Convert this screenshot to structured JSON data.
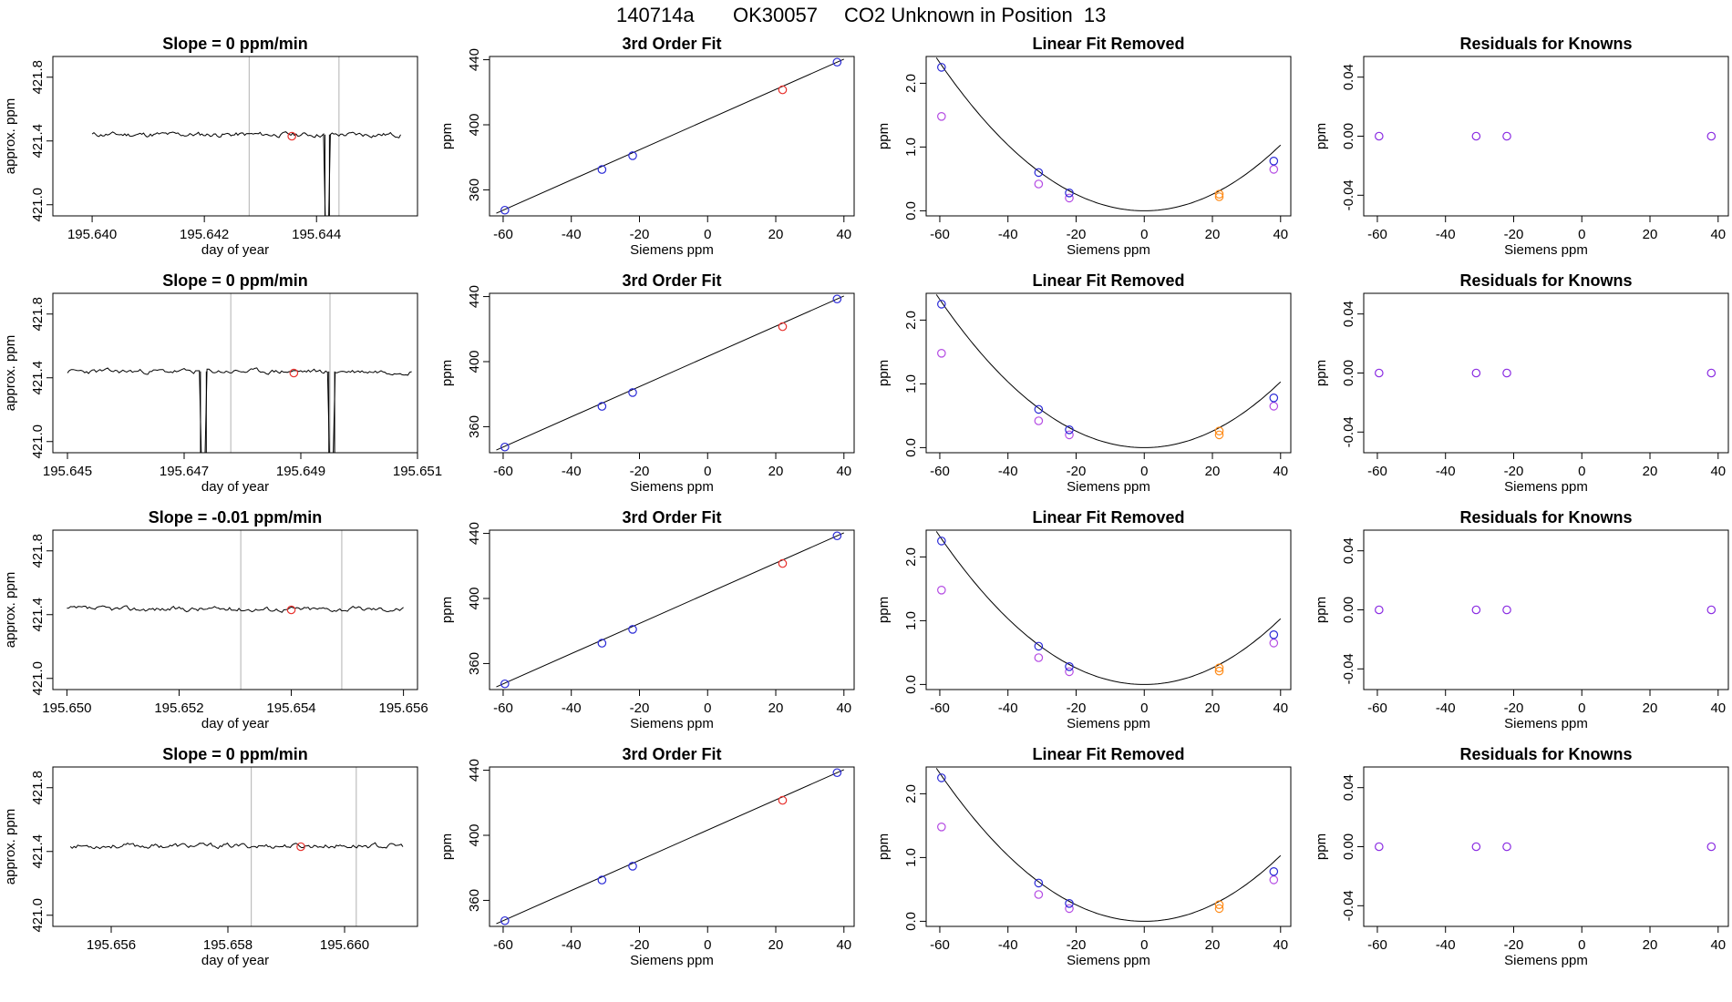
{
  "figure_title": {
    "run": "140714a",
    "tank": "OK30057",
    "description": "CO2 Unknown in Position  13"
  },
  "colors": {
    "trace": "#000000",
    "gridline": "#bebebe",
    "unknown_point": "#e8322e",
    "known_blue": "#2929d6",
    "known_magenta": "#b44be3",
    "known_orange": "#ff8c1a",
    "residual_point": "#8a2be2"
  },
  "chart_data": [
    {
      "row": 1,
      "type": "line",
      "title": "Slope =  0  ppm/min",
      "xlabel": "day of year",
      "ylabel": "approx. ppm",
      "xlim": [
        195.6393,
        195.6458
      ],
      "ylim": [
        420.93,
        421.93
      ],
      "xticks": [
        "195.640",
        "195.642",
        "195.644"
      ],
      "xtick_values": [
        195.64,
        195.642,
        195.644
      ],
      "yticks": [
        "421.0",
        "421.4",
        "421.8"
      ],
      "ytick_values": [
        421.0,
        421.4,
        421.8
      ],
      "window_start": 195.64,
      "window_end": 195.6455,
      "trace_base": 421.44,
      "trace_amp": 0.025,
      "seed": 11,
      "vlines": [
        195.6428,
        195.6444
      ],
      "dropouts": [
        {
          "start": 195.64415,
          "end": 195.64423,
          "low": 420.93
        }
      ],
      "marker": {
        "x": 195.64356,
        "y": 421.43
      }
    },
    {
      "row": 1,
      "type": "scatter",
      "title": "3rd Order Fit",
      "xlabel": "Siemens ppm",
      "ylabel": "ppm",
      "xlim": [
        -64,
        43
      ],
      "ylim": [
        344,
        442
      ],
      "xticks": [
        "-60",
        "-40",
        "-20",
        "0",
        "20",
        "40"
      ],
      "xtick_values": [
        -60,
        -40,
        -20,
        0,
        20,
        40
      ],
      "yticks": [
        "360",
        "400",
        "440"
      ],
      "ytick_values": [
        360,
        400,
        440
      ],
      "fit_line": [
        [
          -60,
          347.5
        ],
        [
          38,
          438.5
        ]
      ],
      "knowns": [
        {
          "x": -59.5,
          "y": 347.5
        },
        {
          "x": -31,
          "y": 372.5
        },
        {
          "x": -22,
          "y": 381
        },
        {
          "x": 38,
          "y": 438.5
        }
      ],
      "unknown": {
        "x": 22,
        "y": 421.5
      }
    },
    {
      "row": 1,
      "type": "scatter",
      "title": "Linear Fit Removed",
      "xlabel": "Siemens ppm",
      "ylabel": "ppm",
      "xlim": [
        -64,
        43
      ],
      "ylim": [
        -0.08,
        2.42
      ],
      "xticks": [
        "-60",
        "-40",
        "-20",
        "0",
        "20",
        "40"
      ],
      "xtick_values": [
        -60,
        -40,
        -20,
        0,
        20,
        40
      ],
      "yticks": [
        "0.0",
        "1.0",
        "2.0"
      ],
      "ytick_values": [
        0,
        1,
        2
      ],
      "curve_coeff": 0.000645,
      "curve_xrange": [
        -60,
        40
      ],
      "blue_points": [
        {
          "x": -59.5,
          "y": 2.25
        },
        {
          "x": -31,
          "y": 0.6
        },
        {
          "x": -22,
          "y": 0.28
        },
        {
          "x": 38,
          "y": 0.78
        }
      ],
      "magenta_points": [
        {
          "x": -59.5,
          "y": 1.48
        },
        {
          "x": -31,
          "y": 0.42
        },
        {
          "x": -22,
          "y": 0.2
        },
        {
          "x": 38,
          "y": 0.65
        }
      ],
      "orange_points": [
        {
          "x": 22,
          "y": 0.26
        },
        {
          "x": 22,
          "y": 0.22
        }
      ]
    },
    {
      "row": 1,
      "type": "scatter",
      "title": "Residuals for Knowns",
      "xlabel": "Siemens ppm",
      "ylabel": "ppm",
      "xlim": [
        -64,
        43
      ],
      "ylim": [
        -0.054,
        0.054
      ],
      "xticks": [
        "-60",
        "-40",
        "-20",
        "0",
        "20",
        "40"
      ],
      "xtick_values": [
        -60,
        -40,
        -20,
        0,
        20,
        40
      ],
      "yticks": [
        "-0.04",
        "0.00",
        "0.04"
      ],
      "ytick_values": [
        -0.04,
        0,
        0.04
      ],
      "points": [
        {
          "x": -59.5,
          "y": 0
        },
        {
          "x": -31,
          "y": 0
        },
        {
          "x": -22,
          "y": 0
        },
        {
          "x": 38,
          "y": 0
        }
      ]
    },
    {
      "row": 2,
      "type": "line",
      "title": "Slope =  0  ppm/min",
      "xlabel": "day of year",
      "ylabel": "approx. ppm",
      "xlim": [
        195.64475,
        195.651
      ],
      "ylim": [
        420.93,
        421.93
      ],
      "xticks": [
        "195.645",
        "195.647",
        "195.649",
        "195.651"
      ],
      "xtick_values": [
        195.645,
        195.647,
        195.649,
        195.651
      ],
      "yticks": [
        "421.0",
        "421.4",
        "421.8"
      ],
      "ytick_values": [
        421.0,
        421.4,
        421.8
      ],
      "window_start": 195.645,
      "window_end": 195.6509,
      "trace_base": 421.44,
      "trace_amp": 0.025,
      "seed": 23,
      "vlines": [
        195.6478,
        195.6495
      ],
      "dropouts": [
        {
          "start": 195.64728,
          "end": 195.64738,
          "low": 420.93
        },
        {
          "start": 195.64948,
          "end": 195.64958,
          "low": 420.93
        }
      ],
      "marker": {
        "x": 195.64888,
        "y": 421.43
      }
    },
    {
      "row": 2,
      "type": "scatter",
      "title": "3rd Order Fit",
      "xlabel": "Siemens ppm",
      "ylabel": "ppm",
      "xlim": [
        -64,
        43
      ],
      "ylim": [
        344,
        442
      ],
      "xticks": [
        "-60",
        "-40",
        "-20",
        "0",
        "20",
        "40"
      ],
      "xtick_values": [
        -60,
        -40,
        -20,
        0,
        20,
        40
      ],
      "yticks": [
        "360",
        "400",
        "440"
      ],
      "ytick_values": [
        360,
        400,
        440
      ],
      "fit_line": [
        [
          -60,
          347.5
        ],
        [
          38,
          438.5
        ]
      ],
      "knowns": [
        {
          "x": -59.5,
          "y": 347.5
        },
        {
          "x": -31,
          "y": 372.5
        },
        {
          "x": -22,
          "y": 381
        },
        {
          "x": 38,
          "y": 438.5
        }
      ],
      "unknown": {
        "x": 22,
        "y": 421.5
      }
    },
    {
      "row": 2,
      "type": "scatter",
      "title": "Linear Fit Removed",
      "xlabel": "Siemens ppm",
      "ylabel": "ppm",
      "xlim": [
        -64,
        43
      ],
      "ylim": [
        -0.08,
        2.42
      ],
      "xticks": [
        "-60",
        "-40",
        "-20",
        "0",
        "20",
        "40"
      ],
      "xtick_values": [
        -60,
        -40,
        -20,
        0,
        20,
        40
      ],
      "yticks": [
        "0.0",
        "1.0",
        "2.0"
      ],
      "ytick_values": [
        0,
        1,
        2
      ],
      "curve_coeff": 0.000645,
      "curve_xrange": [
        -60,
        40
      ],
      "blue_points": [
        {
          "x": -59.5,
          "y": 2.25
        },
        {
          "x": -31,
          "y": 0.6
        },
        {
          "x": -22,
          "y": 0.28
        },
        {
          "x": 38,
          "y": 0.78
        }
      ],
      "magenta_points": [
        {
          "x": -59.5,
          "y": 1.48
        },
        {
          "x": -31,
          "y": 0.42
        },
        {
          "x": -22,
          "y": 0.2
        },
        {
          "x": 38,
          "y": 0.65
        }
      ],
      "orange_points": [
        {
          "x": 22,
          "y": 0.26
        },
        {
          "x": 22,
          "y": 0.2
        }
      ]
    },
    {
      "row": 2,
      "type": "scatter",
      "title": "Residuals for Knowns",
      "xlabel": "Siemens ppm",
      "ylabel": "ppm",
      "xlim": [
        -64,
        43
      ],
      "ylim": [
        -0.054,
        0.054
      ],
      "xticks": [
        "-60",
        "-40",
        "-20",
        "0",
        "20",
        "40"
      ],
      "xtick_values": [
        -60,
        -40,
        -20,
        0,
        20,
        40
      ],
      "yticks": [
        "-0.04",
        "0.00",
        "0.04"
      ],
      "ytick_values": [
        -0.04,
        0,
        0.04
      ],
      "points": [
        {
          "x": -59.5,
          "y": 0
        },
        {
          "x": -31,
          "y": 0
        },
        {
          "x": -22,
          "y": 0
        },
        {
          "x": 38,
          "y": 0
        }
      ]
    },
    {
      "row": 3,
      "type": "line",
      "title": "Slope =  -0.01  ppm/min",
      "xlabel": "day of year",
      "ylabel": "approx. ppm",
      "xlim": [
        195.64975,
        195.65625
      ],
      "ylim": [
        420.93,
        421.93
      ],
      "xticks": [
        "195.650",
        "195.652",
        "195.654",
        "195.656"
      ],
      "xtick_values": [
        195.65,
        195.652,
        195.654,
        195.656
      ],
      "yticks": [
        "421.0",
        "421.4",
        "421.8"
      ],
      "ytick_values": [
        421.0,
        421.4,
        421.8
      ],
      "window_start": 195.65,
      "window_end": 195.656,
      "trace_base": 421.435,
      "trace_amp": 0.025,
      "seed": 37,
      "vlines": [
        195.6531,
        195.6549
      ],
      "dropouts": [],
      "marker": {
        "x": 195.654,
        "y": 421.43
      }
    },
    {
      "row": 3,
      "type": "scatter",
      "title": "3rd Order Fit",
      "xlabel": "Siemens ppm",
      "ylabel": "ppm",
      "xlim": [
        -64,
        43
      ],
      "ylim": [
        344,
        442
      ],
      "xticks": [
        "-60",
        "-40",
        "-20",
        "0",
        "20",
        "40"
      ],
      "xtick_values": [
        -60,
        -40,
        -20,
        0,
        20,
        40
      ],
      "yticks": [
        "360",
        "400",
        "440"
      ],
      "ytick_values": [
        360,
        400,
        440
      ],
      "fit_line": [
        [
          -60,
          347.5
        ],
        [
          38,
          438.5
        ]
      ],
      "knowns": [
        {
          "x": -59.5,
          "y": 347.5
        },
        {
          "x": -31,
          "y": 372.5
        },
        {
          "x": -22,
          "y": 381
        },
        {
          "x": 38,
          "y": 438.5
        }
      ],
      "unknown": {
        "x": 22,
        "y": 421.5
      }
    },
    {
      "row": 3,
      "type": "scatter",
      "title": "Linear Fit Removed",
      "xlabel": "Siemens ppm",
      "ylabel": "ppm",
      "xlim": [
        -64,
        43
      ],
      "ylim": [
        -0.08,
        2.42
      ],
      "xticks": [
        "-60",
        "-40",
        "-20",
        "0",
        "20",
        "40"
      ],
      "xtick_values": [
        -60,
        -40,
        -20,
        0,
        20,
        40
      ],
      "yticks": [
        "0.0",
        "1.0",
        "2.0"
      ],
      "ytick_values": [
        0,
        1,
        2
      ],
      "curve_coeff": 0.000645,
      "curve_xrange": [
        -60,
        40
      ],
      "blue_points": [
        {
          "x": -59.5,
          "y": 2.25
        },
        {
          "x": -31,
          "y": 0.6
        },
        {
          "x": -22,
          "y": 0.28
        },
        {
          "x": 38,
          "y": 0.78
        }
      ],
      "magenta_points": [
        {
          "x": -59.5,
          "y": 1.48
        },
        {
          "x": -31,
          "y": 0.42
        },
        {
          "x": -22,
          "y": 0.2
        },
        {
          "x": 38,
          "y": 0.65
        }
      ],
      "orange_points": [
        {
          "x": 22,
          "y": 0.26
        },
        {
          "x": 22,
          "y": 0.21
        }
      ]
    },
    {
      "row": 3,
      "type": "scatter",
      "title": "Residuals for Knowns",
      "xlabel": "Siemens ppm",
      "ylabel": "ppm",
      "xlim": [
        -64,
        43
      ],
      "ylim": [
        -0.054,
        0.054
      ],
      "xticks": [
        "-60",
        "-40",
        "-20",
        "0",
        "20",
        "40"
      ],
      "xtick_values": [
        -60,
        -40,
        -20,
        0,
        20,
        40
      ],
      "yticks": [
        "-0.04",
        "0.00",
        "0.04"
      ],
      "ytick_values": [
        -0.04,
        0,
        0.04
      ],
      "points": [
        {
          "x": -59.5,
          "y": 0
        },
        {
          "x": -31,
          "y": 0
        },
        {
          "x": -22,
          "y": 0
        },
        {
          "x": 38,
          "y": 0
        }
      ]
    },
    {
      "row": 4,
      "type": "line",
      "title": "Slope =  0  ppm/min",
      "xlabel": "day of year",
      "ylabel": "approx. ppm",
      "xlim": [
        195.655,
        195.66125
      ],
      "ylim": [
        420.93,
        421.93
      ],
      "xticks": [
        "195.656",
        "195.658",
        "195.660"
      ],
      "xtick_values": [
        195.656,
        195.658,
        195.66
      ],
      "yticks": [
        "421.0",
        "421.4",
        "421.8"
      ],
      "ytick_values": [
        421.0,
        421.4,
        421.8
      ],
      "window_start": 195.6553,
      "window_end": 195.661,
      "trace_base": 421.435,
      "trace_amp": 0.025,
      "seed": 53,
      "vlines": [
        195.6584,
        195.6602
      ],
      "dropouts": [],
      "marker": {
        "x": 195.65925,
        "y": 421.43
      }
    },
    {
      "row": 4,
      "type": "scatter",
      "title": "3rd Order Fit",
      "xlabel": "Siemens ppm",
      "ylabel": "ppm",
      "xlim": [
        -64,
        43
      ],
      "ylim": [
        344,
        442
      ],
      "xticks": [
        "-60",
        "-40",
        "-20",
        "0",
        "20",
        "40"
      ],
      "xtick_values": [
        -60,
        -40,
        -20,
        0,
        20,
        40
      ],
      "yticks": [
        "360",
        "400",
        "440"
      ],
      "ytick_values": [
        360,
        400,
        440
      ],
      "fit_line": [
        [
          -60,
          347.5
        ],
        [
          38,
          438.5
        ]
      ],
      "knowns": [
        {
          "x": -59.5,
          "y": 347.5
        },
        {
          "x": -31,
          "y": 372.5
        },
        {
          "x": -22,
          "y": 381
        },
        {
          "x": 38,
          "y": 438.5
        }
      ],
      "unknown": {
        "x": 22,
        "y": 421.5
      }
    },
    {
      "row": 4,
      "type": "scatter",
      "title": "Linear Fit Removed",
      "xlabel": "Siemens ppm",
      "ylabel": "ppm",
      "xlim": [
        -64,
        43
      ],
      "ylim": [
        -0.08,
        2.42
      ],
      "xticks": [
        "-60",
        "-40",
        "-20",
        "0",
        "20",
        "40"
      ],
      "xtick_values": [
        -60,
        -40,
        -20,
        0,
        20,
        40
      ],
      "yticks": [
        "0.0",
        "1.0",
        "2.0"
      ],
      "ytick_values": [
        0,
        1,
        2
      ],
      "curve_coeff": 0.000645,
      "curve_xrange": [
        -60,
        40
      ],
      "blue_points": [
        {
          "x": -59.5,
          "y": 2.25
        },
        {
          "x": -31,
          "y": 0.6
        },
        {
          "x": -22,
          "y": 0.28
        },
        {
          "x": 38,
          "y": 0.78
        }
      ],
      "magenta_points": [
        {
          "x": -59.5,
          "y": 1.48
        },
        {
          "x": -31,
          "y": 0.42
        },
        {
          "x": -22,
          "y": 0.2
        },
        {
          "x": 38,
          "y": 0.65
        }
      ],
      "orange_points": [
        {
          "x": 22,
          "y": 0.26
        },
        {
          "x": 22,
          "y": 0.2
        }
      ]
    },
    {
      "row": 4,
      "type": "scatter",
      "title": "Residuals for Knowns",
      "xlabel": "Siemens ppm",
      "ylabel": "ppm",
      "xlim": [
        -64,
        43
      ],
      "ylim": [
        -0.054,
        0.054
      ],
      "xticks": [
        "-60",
        "-40",
        "-20",
        "0",
        "20",
        "40"
      ],
      "xtick_values": [
        -60,
        -40,
        -20,
        0,
        20,
        40
      ],
      "yticks": [
        "-0.04",
        "0.00",
        "0.04"
      ],
      "ytick_values": [
        -0.04,
        0,
        0.04
      ],
      "points": [
        {
          "x": -59.5,
          "y": 0
        },
        {
          "x": -31,
          "y": 0
        },
        {
          "x": -22,
          "y": 0
        },
        {
          "x": 38,
          "y": 0
        }
      ]
    }
  ]
}
